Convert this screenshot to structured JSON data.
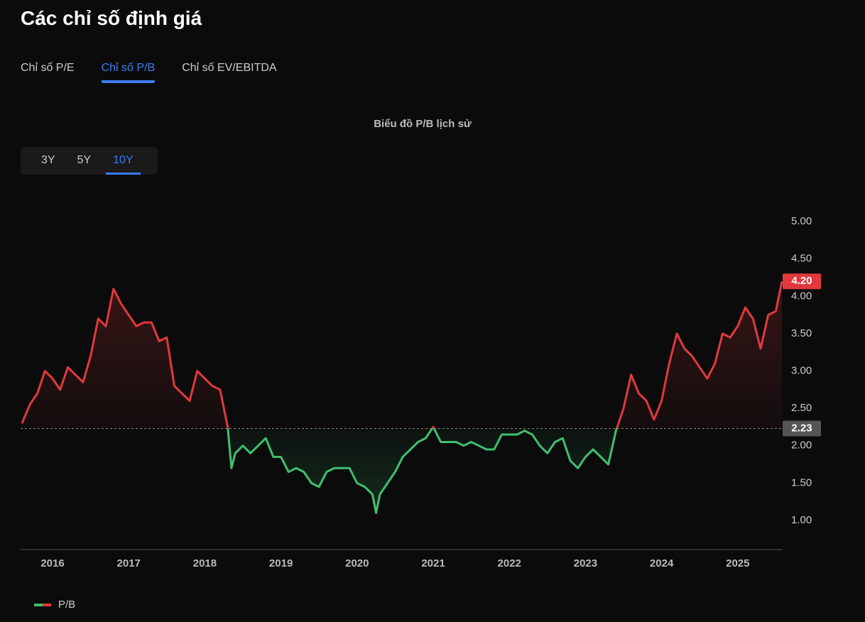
{
  "header": {
    "title": "Các chỉ số định giá"
  },
  "tabs": {
    "items": [
      "Chỉ số P/E",
      "Chỉ số P/B",
      "Chỉ số EV/EBITDA"
    ],
    "active": 1
  },
  "ranges": {
    "items": [
      "3Y",
      "5Y",
      "10Y"
    ],
    "active": 2
  },
  "chart_data": {
    "type": "line",
    "title": "Biểu đồ P/B lịch sử",
    "x": [
      2015.6,
      2015.7,
      2015.8,
      2015.9,
      2016.0,
      2016.1,
      2016.2,
      2016.3,
      2016.4,
      2016.5,
      2016.6,
      2016.7,
      2016.8,
      2016.9,
      2017.0,
      2017.1,
      2017.2,
      2017.3,
      2017.4,
      2017.5,
      2017.6,
      2017.7,
      2017.8,
      2017.9,
      2018.0,
      2018.1,
      2018.2,
      2018.3,
      2018.35,
      2018.4,
      2018.5,
      2018.6,
      2018.7,
      2018.8,
      2018.9,
      2019.0,
      2019.1,
      2019.2,
      2019.3,
      2019.4,
      2019.5,
      2019.6,
      2019.7,
      2019.8,
      2019.9,
      2020.0,
      2020.1,
      2020.2,
      2020.25,
      2020.3,
      2020.4,
      2020.5,
      2020.6,
      2020.7,
      2020.8,
      2020.9,
      2021.0,
      2021.1,
      2021.2,
      2021.3,
      2021.4,
      2021.5,
      2021.6,
      2021.7,
      2021.8,
      2021.9,
      2022.0,
      2022.1,
      2022.2,
      2022.3,
      2022.4,
      2022.5,
      2022.6,
      2022.7,
      2022.8,
      2022.9,
      2023.0,
      2023.1,
      2023.2,
      2023.3,
      2023.4,
      2023.5,
      2023.6,
      2023.7,
      2023.8,
      2023.9,
      2024.0,
      2024.1,
      2024.2,
      2024.3,
      2024.4,
      2024.5,
      2024.6,
      2024.7,
      2024.8,
      2024.9,
      2025.0,
      2025.1,
      2025.2,
      2025.3,
      2025.4,
      2025.5,
      2025.58
    ],
    "series": [
      {
        "name": "P/B",
        "color": "#e0393e",
        "color_below": "#3fbf6f",
        "values": [
          2.3,
          2.55,
          2.7,
          3.0,
          2.9,
          2.75,
          3.05,
          2.95,
          2.85,
          3.2,
          3.7,
          3.6,
          4.1,
          3.9,
          3.75,
          3.6,
          3.65,
          3.65,
          3.4,
          3.45,
          2.8,
          2.7,
          2.6,
          3.0,
          2.9,
          2.8,
          2.75,
          2.25,
          1.7,
          1.9,
          2.0,
          1.9,
          2.0,
          2.1,
          1.85,
          1.85,
          1.65,
          1.7,
          1.65,
          1.5,
          1.45,
          1.65,
          1.7,
          1.7,
          1.7,
          1.5,
          1.45,
          1.35,
          1.1,
          1.35,
          1.5,
          1.65,
          1.85,
          1.95,
          2.05,
          2.1,
          2.25,
          2.05,
          2.05,
          2.05,
          2.0,
          2.05,
          2.0,
          1.95,
          1.95,
          2.15,
          2.15,
          2.15,
          2.2,
          2.15,
          2.0,
          1.9,
          2.05,
          2.1,
          1.8,
          1.7,
          1.85,
          1.95,
          1.85,
          1.75,
          2.2,
          2.5,
          2.95,
          2.7,
          2.6,
          2.35,
          2.6,
          3.1,
          3.5,
          3.3,
          3.2,
          3.05,
          2.9,
          3.1,
          3.5,
          3.45,
          3.6,
          3.85,
          3.7,
          3.3,
          3.75,
          3.8,
          4.2
        ]
      }
    ],
    "last_value_label": "4.20",
    "reference_line": 2.23,
    "xlim": [
      2015.58,
      2025.58
    ],
    "xticks": [
      2016,
      2017,
      2018,
      2019,
      2020,
      2021,
      2022,
      2023,
      2024,
      2025
    ],
    "ylim": [
      0.61,
      5.21
    ],
    "yticks": [
      {
        "value": 1,
        "label": "1.00"
      },
      {
        "value": 1.5,
        "label": "1.50"
      },
      {
        "value": 2,
        "label": "2.00"
      },
      {
        "value": 2.5,
        "label": "2.50"
      },
      {
        "value": 3,
        "label": "3.00"
      },
      {
        "value": 3.5,
        "label": "3.50"
      },
      {
        "value": 4,
        "label": "4.00"
      },
      {
        "value": 4.5,
        "label": "4.50"
      },
      {
        "value": 5,
        "label": "5.00"
      }
    ]
  }
}
